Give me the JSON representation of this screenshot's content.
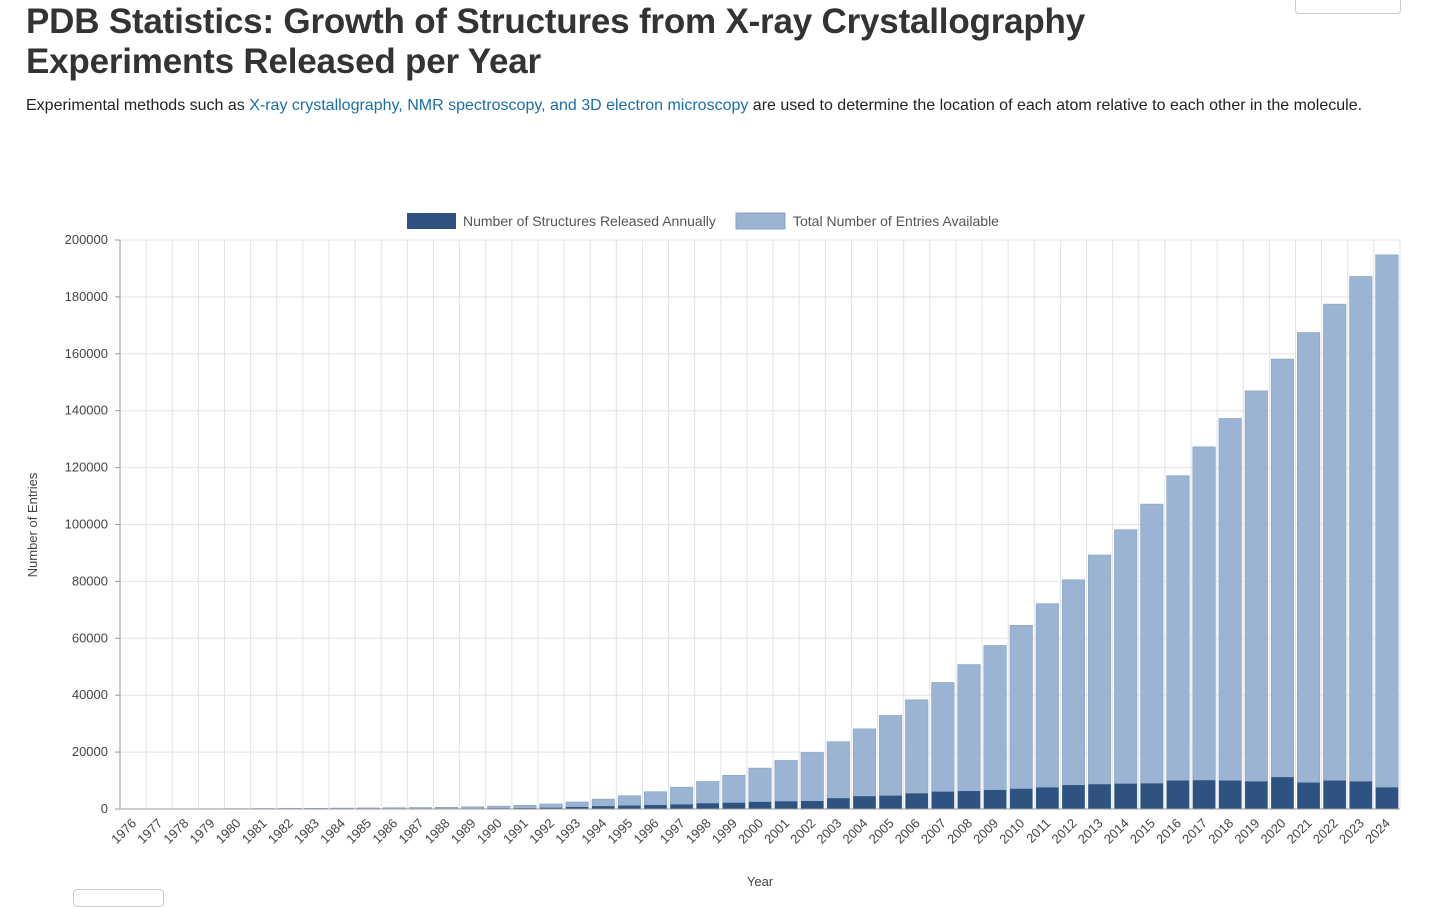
{
  "page": {
    "title": "PDB Statistics: Growth of Structures from X-ray Crystallography Experiments Released per Year",
    "intro_before": "Experimental methods such as ",
    "intro_link": "X-ray crystallography, NMR spectroscopy, and 3D electron microscopy",
    "intro_after": " are used to determine the location of each atom relative to each other in the molecule."
  },
  "chart_data": {
    "type": "bar",
    "xlabel": "Year",
    "ylabel": "Number of Entries",
    "ylim": [
      0,
      200000
    ],
    "yticks": [
      0,
      20000,
      40000,
      60000,
      80000,
      100000,
      120000,
      140000,
      160000,
      180000,
      200000
    ],
    "grid": true,
    "legend_position": "top-center",
    "categories": [
      "1976",
      "1977",
      "1978",
      "1979",
      "1980",
      "1981",
      "1982",
      "1983",
      "1984",
      "1985",
      "1986",
      "1987",
      "1988",
      "1989",
      "1990",
      "1991",
      "1992",
      "1993",
      "1994",
      "1995",
      "1996",
      "1997",
      "1998",
      "1999",
      "2000",
      "2001",
      "2002",
      "2003",
      "2004",
      "2005",
      "2006",
      "2007",
      "2008",
      "2009",
      "2010",
      "2011",
      "2012",
      "2013",
      "2014",
      "2015",
      "2016",
      "2017",
      "2018",
      "2019",
      "2020",
      "2021",
      "2022",
      "2023",
      "2024"
    ],
    "series": [
      {
        "name": "Number of Structures Released Annually",
        "color": "#2e5380",
        "values": [
          0,
          20,
          30,
          30,
          40,
          40,
          40,
          50,
          60,
          60,
          60,
          80,
          100,
          150,
          250,
          300,
          450,
          700,
          1000,
          1200,
          1400,
          1600,
          2000,
          2200,
          2500,
          2700,
          2800,
          3800,
          4500,
          4700,
          5500,
          6100,
          6300,
          6700,
          7100,
          7600,
          8400,
          8700,
          8900,
          9000,
          10000,
          10100,
          10000,
          9700,
          11200,
          9300,
          10000,
          9700,
          7600
        ]
      },
      {
        "name": "Total Number of Entries Available",
        "color": "#9cb4d4",
        "values": [
          10,
          30,
          60,
          90,
          130,
          170,
          210,
          260,
          320,
          380,
          440,
          520,
          620,
          770,
          1020,
          1320,
          1770,
          2470,
          3470,
          4670,
          6070,
          7670,
          9670,
          11870,
          14370,
          17070,
          19870,
          23670,
          28170,
          32870,
          38370,
          44470,
          50770,
          57470,
          64570,
          72170,
          80570,
          89270,
          98170,
          107170,
          117170,
          127270,
          137270,
          146970,
          158170,
          167470,
          177470,
          187170,
          194770
        ]
      }
    ]
  }
}
